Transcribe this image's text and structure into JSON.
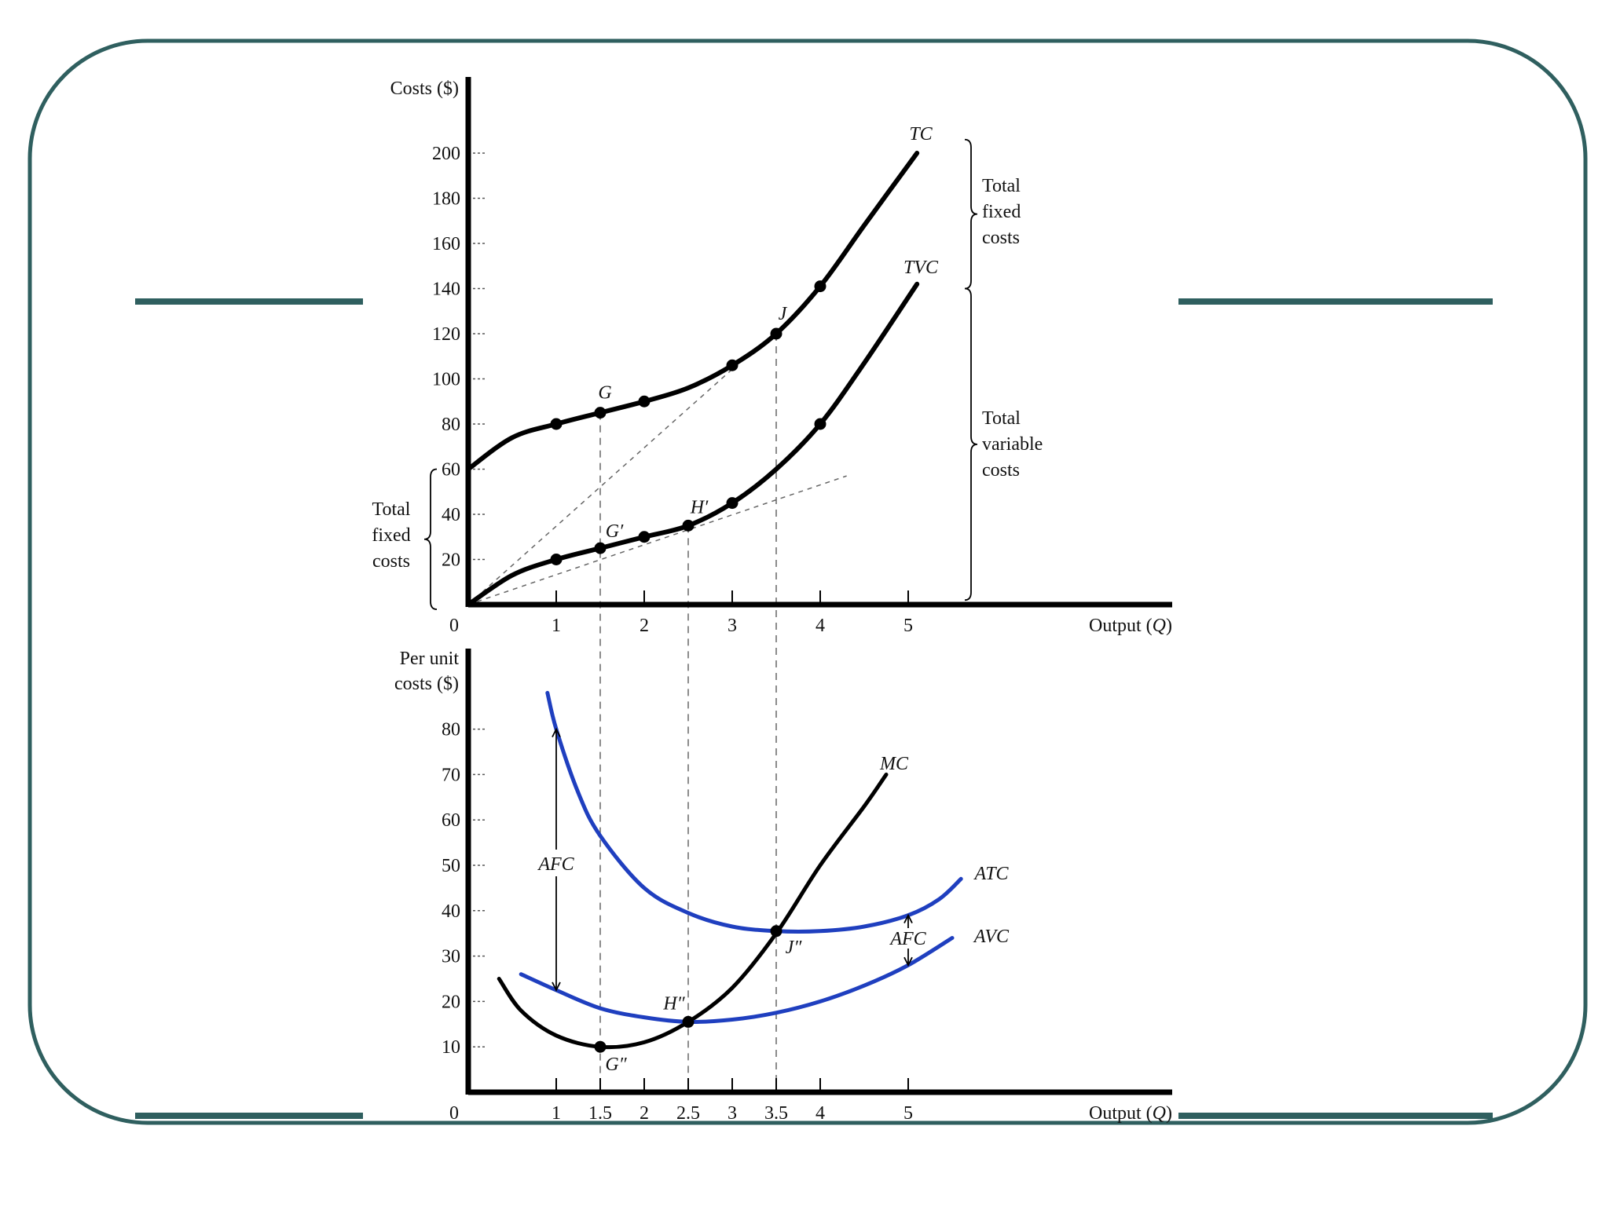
{
  "colors": {
    "frame": "#2f5f5f",
    "cost_line": "#000000",
    "avg_line": "#1f3fbf",
    "guide": "#666666"
  },
  "chart_data": [
    {
      "type": "line",
      "ylabel": "Costs ($)",
      "xlabel": "Output (",
      "xlabel_var": "Q",
      "xlabel_close": ")",
      "xlim": [
        0,
        8
      ],
      "ylim": [
        0,
        230
      ],
      "origin_label": "0",
      "x_ticks": [
        "1",
        "2",
        "3",
        "4",
        "5"
      ],
      "y_ticks": [
        "20",
        "40",
        "60",
        "80",
        "100",
        "120",
        "140",
        "160",
        "180",
        "200"
      ],
      "series": [
        {
          "name": "TC",
          "x": [
            0,
            0.5,
            1,
            1.5,
            2,
            2.5,
            3,
            3.5,
            4,
            4.5,
            5.1
          ],
          "y": [
            60,
            74,
            80,
            85,
            90,
            96,
            106,
            120,
            141,
            168,
            200
          ]
        },
        {
          "name": "TVC",
          "x": [
            0,
            0.5,
            1,
            1.5,
            2,
            2.5,
            3,
            3.5,
            4,
            4.5,
            5.1
          ],
          "y": [
            0,
            13,
            20,
            25,
            30,
            35,
            45,
            60,
            80,
            107,
            142
          ]
        }
      ],
      "points": [
        {
          "label": "",
          "series": "TC",
          "x": 1,
          "y": 80
        },
        {
          "label": "G",
          "series": "TC",
          "x": 1.5,
          "y": 85
        },
        {
          "label": "",
          "series": "TC",
          "x": 2,
          "y": 90
        },
        {
          "label": "",
          "series": "TC",
          "x": 3,
          "y": 106
        },
        {
          "label": "J",
          "series": "TC",
          "x": 3.5,
          "y": 120
        },
        {
          "label": "",
          "series": "TC",
          "x": 4,
          "y": 141
        },
        {
          "label": "",
          "series": "TVC",
          "x": 1,
          "y": 20
        },
        {
          "label": "G′",
          "series": "TVC",
          "x": 1.5,
          "y": 25
        },
        {
          "label": "",
          "series": "TVC",
          "x": 2,
          "y": 30
        },
        {
          "label": "H′",
          "series": "TVC",
          "x": 2.5,
          "y": 35
        },
        {
          "label": "",
          "series": "TVC",
          "x": 3,
          "y": 45
        },
        {
          "label": "",
          "series": "TVC",
          "x": 4,
          "y": 80
        }
      ],
      "rays": [
        {
          "from": [
            0,
            0
          ],
          "to": [
            3.05,
            106
          ]
        },
        {
          "from": [
            0,
            0
          ],
          "to": [
            4.3,
            57
          ]
        }
      ],
      "brackets": {
        "left": {
          "lines": [
            "Total",
            "fixed",
            "costs"
          ],
          "y_range": [
            0,
            60
          ]
        },
        "right_top": {
          "lines": [
            "Total",
            "fixed",
            "costs"
          ],
          "y_range": [
            140,
            206
          ]
        },
        "right_bottom": {
          "lines": [
            "Total",
            "variable",
            "costs"
          ],
          "y_range": [
            2,
            140
          ]
        }
      }
    },
    {
      "type": "line",
      "ylabel_lines": [
        "Per unit",
        "costs ($)"
      ],
      "xlabel": "Output (",
      "xlabel_var": "Q",
      "xlabel_close": ")",
      "xlim": [
        0,
        8
      ],
      "ylim": [
        0,
        95
      ],
      "origin_label": "0",
      "x_ticks": [
        "1",
        "1.5",
        "2",
        "2.5",
        "3",
        "3.5",
        "4",
        "5"
      ],
      "y_ticks": [
        "10",
        "20",
        "30",
        "40",
        "50",
        "60",
        "70",
        "80"
      ],
      "series": [
        {
          "name": "MC",
          "x": [
            0.35,
            0.6,
            1,
            1.5,
            2,
            2.5,
            3,
            3.5,
            4,
            4.5,
            4.75
          ],
          "y": [
            25,
            18,
            12.5,
            10,
            11,
            15.5,
            23,
            35,
            50,
            63,
            70
          ]
        },
        {
          "name": "ATC",
          "x": [
            0.9,
            1,
            1.25,
            1.5,
            2,
            2.5,
            3,
            3.5,
            4,
            4.5,
            5,
            5.35,
            5.6
          ],
          "y": [
            88,
            80,
            66,
            56.5,
            45,
            39.5,
            36.5,
            35.5,
            35.5,
            36.5,
            39,
            42.5,
            47
          ]
        },
        {
          "name": "AVC",
          "x": [
            0.6,
            1,
            1.5,
            2,
            2.5,
            3,
            3.5,
            4,
            4.5,
            5,
            5.5
          ],
          "y": [
            26,
            22.5,
            18.5,
            16.5,
            15.5,
            16,
            17.5,
            20,
            23.5,
            28,
            34
          ]
        }
      ],
      "points": [
        {
          "label": "G″",
          "series": "MC",
          "x": 1.5,
          "y": 10
        },
        {
          "label": "H″",
          "series": "MC",
          "x": 2.5,
          "y": 15.5
        },
        {
          "label": "J″",
          "series": "MC",
          "x": 3.5,
          "y": 35.5
        }
      ],
      "annotations": [
        {
          "text": "AFC",
          "x": 1,
          "y_range": [
            22.5,
            80
          ]
        },
        {
          "text": "AFC",
          "x": 5,
          "y_range": [
            28,
            39
          ]
        }
      ]
    }
  ]
}
